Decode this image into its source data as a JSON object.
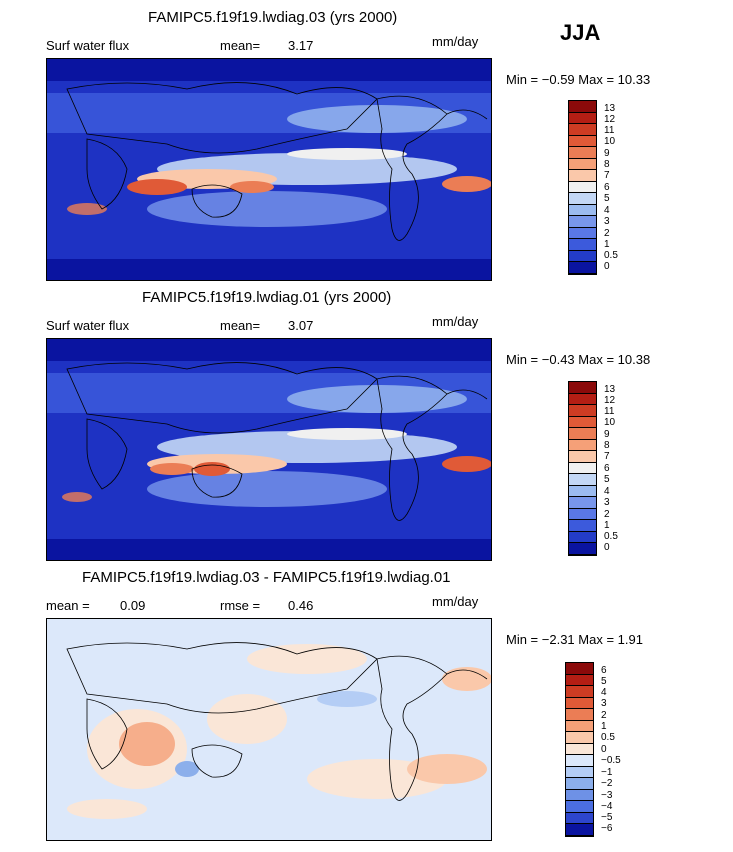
{
  "season": "JJA",
  "panels": [
    {
      "title": "FAMIPC5.f19f19.lwdiag.03 (yrs 2000)",
      "left_label": "Surf water flux",
      "stat_label": "mean=",
      "stat_value": "3.17",
      "units": "mm/day",
      "minmax": "Min = −0.59 Max = 10.33",
      "colorbar_labels": [
        "13",
        "12",
        "11",
        "10",
        "9",
        "8",
        "7",
        "6",
        "5",
        "4",
        "3",
        "2",
        "1",
        "0.5",
        "0"
      ],
      "colors": [
        "#8b0a0a",
        "#b41e14",
        "#cd3c23",
        "#e05a37",
        "#eb7d55",
        "#f5a078",
        "#fac8aa",
        "#f0f0f0",
        "#c3d7f5",
        "#9bbbf0",
        "#7896eb",
        "#5a78e6",
        "#3c5adc",
        "#233cc8",
        "#0a14a0"
      ]
    },
    {
      "title": "FAMIPC5.f19f19.lwdiag.01 (yrs 2000)",
      "left_label": "Surf water flux",
      "stat_label": "mean=",
      "stat_value": "3.07",
      "units": "mm/day",
      "minmax": "Min = −0.43 Max = 10.38",
      "colorbar_labels": [
        "13",
        "12",
        "11",
        "10",
        "9",
        "8",
        "7",
        "6",
        "5",
        "4",
        "3",
        "2",
        "1",
        "0.5",
        "0"
      ],
      "colors": [
        "#8b0a0a",
        "#b41e14",
        "#cd3c23",
        "#e05a37",
        "#eb7d55",
        "#f5a078",
        "#fac8aa",
        "#f0f0f0",
        "#c3d7f5",
        "#9bbbf0",
        "#7896eb",
        "#5a78e6",
        "#3c5adc",
        "#233cc8",
        "#0a14a0"
      ]
    },
    {
      "title": "FAMIPC5.f19f19.lwdiag.03 - FAMIPC5.f19f19.lwdiag.01",
      "left_label": "mean =",
      "left_value": "0.09",
      "stat_label": "rmse =",
      "stat_value": "0.46",
      "units": "mm/day",
      "minmax": "Min = −2.31 Max = 1.91",
      "colorbar_labels": [
        "6",
        "5",
        "4",
        "3",
        "2",
        "1",
        "0.5",
        "0",
        "−0.5",
        "−1",
        "−2",
        "−3",
        "−4",
        "−5",
        "−6"
      ],
      "colors": [
        "#8b0a0a",
        "#b41e14",
        "#cd3c23",
        "#e05a37",
        "#eb7d55",
        "#f5a078",
        "#fac8aa",
        "#fae6d7",
        "#dce8fa",
        "#b4cdf5",
        "#8cafeb",
        "#6e91e6",
        "#4b6ee1",
        "#2d46cd",
        "#0a14a0"
      ]
    }
  ]
}
